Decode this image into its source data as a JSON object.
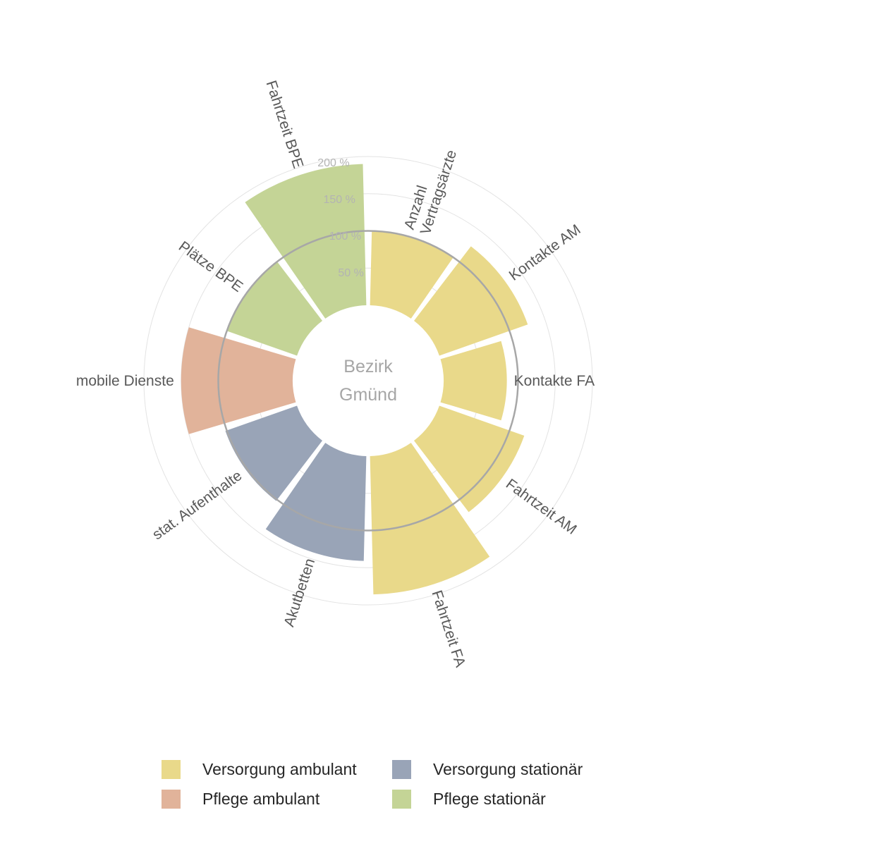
{
  "chart_data": {
    "type": "polar-bar",
    "center_label": [
      "Bezirk",
      "Gmünd"
    ],
    "radial_ticks": [
      {
        "value": 50,
        "label": "50 %"
      },
      {
        "value": 100,
        "label": "100 %"
      },
      {
        "value": 150,
        "label": "150 %"
      },
      {
        "value": 200,
        "label": "200 %"
      }
    ],
    "reference_value": 100,
    "categories": [
      {
        "label": [
          "Anzahl",
          "Vertragsärzte"
        ],
        "value": 100,
        "group": "Versorgung ambulant"
      },
      {
        "label": [
          "Kontakte AM"
        ],
        "value": 126,
        "group": "Versorgung ambulant"
      },
      {
        "label": [
          "Kontakte FA"
        ],
        "value": 85,
        "group": "Versorgung ambulant"
      },
      {
        "label": [
          "Fahrtzeit AM"
        ],
        "value": 121,
        "group": "Versorgung ambulant"
      },
      {
        "label": [
          "Fahrtzeit FA"
        ],
        "value": 186,
        "group": "Versorgung ambulant"
      },
      {
        "label": [
          "Akutbetten"
        ],
        "value": 141,
        "group": "Versorgung stationär"
      },
      {
        "label": [
          "stat. Aufenthalte"
        ],
        "value": 102,
        "group": "Versorgung stationär"
      },
      {
        "label": [
          "mobile Dienste"
        ],
        "value": 150,
        "group": "Pflege ambulant"
      },
      {
        "label": [
          "Plätze BPE"
        ],
        "value": 100,
        "group": "Pflege stationär"
      },
      {
        "label": [
          "Fahrtzeit BPE"
        ],
        "value": 190,
        "group": "Pflege stationär"
      }
    ],
    "legend": [
      {
        "name": "Versorgung ambulant",
        "color": "#e9d98a"
      },
      {
        "name": "Pflege ambulant",
        "color": "#e1b39a"
      },
      {
        "name": "Versorgung stationär",
        "color": "#99a4b7"
      },
      {
        "name": "Pflege stationär",
        "color": "#c4d496"
      }
    ],
    "legend_position": "bottom"
  }
}
